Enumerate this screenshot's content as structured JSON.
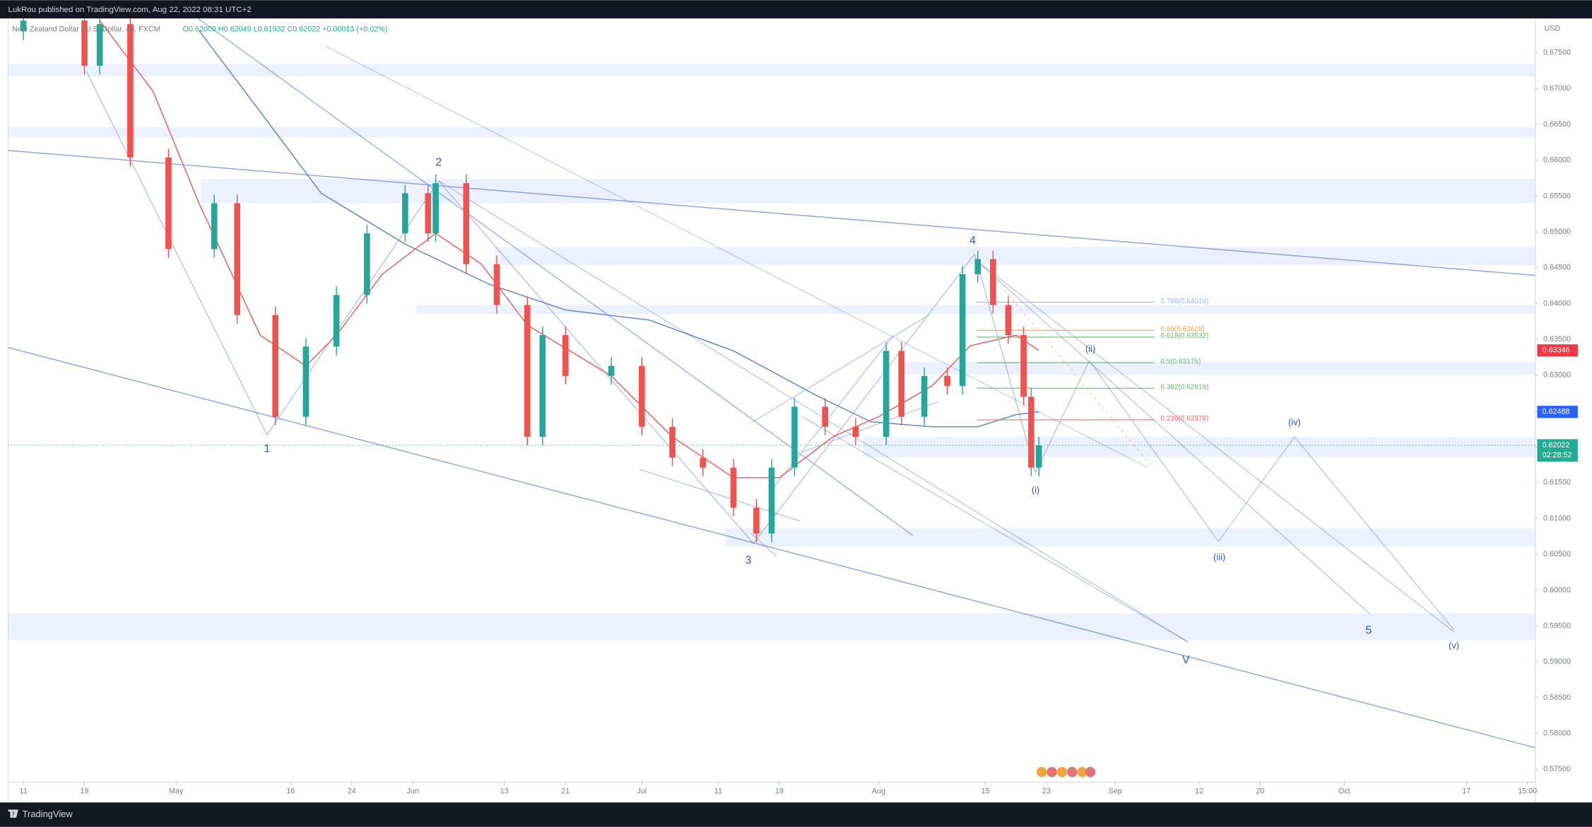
{
  "header": {
    "publisher": "LukRou published on TradingView.com, Aug 22, 2022 08:31 UTC+2",
    "legend": "New Zealand Dollar / U.S. Dollar, 4h, FXCM",
    "ohlc": "O0.62009 H0.62049 L0.61932 C0.62022 +0.00013 (+0.02%)"
  },
  "chart_data": {
    "type": "candlestick",
    "x": [
      "2022-04-11",
      "2022-04-19",
      "2022-04-21",
      "2022-04-25",
      "2022-04-30",
      "2022-05-06",
      "2022-05-09",
      "2022-05-14",
      "2022-05-18",
      "2022-05-22",
      "2022-05-26",
      "2022-05-31",
      "2022-06-03",
      "2022-06-04",
      "2022-06-08",
      "2022-06-12",
      "2022-06-16",
      "2022-06-18",
      "2022-06-21",
      "2022-06-27",
      "2022-07-01",
      "2022-07-05",
      "2022-07-09",
      "2022-07-13",
      "2022-07-16",
      "2022-07-18",
      "2022-07-21",
      "2022-07-25",
      "2022-07-29",
      "2022-08-02",
      "2022-08-04",
      "2022-08-07",
      "2022-08-10",
      "2022-08-12",
      "2022-08-14",
      "2022-08-16",
      "2022-08-18",
      "2022-08-20",
      "2022-08-21",
      "2022-08-22"
    ],
    "open": [
      0.678,
      0.6795,
      0.6732,
      0.679,
      0.6604,
      0.6476,
      0.654,
      0.6384,
      0.6242,
      0.634,
      0.6412,
      0.6498,
      0.6554,
      0.6498,
      0.6568,
      0.6455,
      0.6398,
      0.6214,
      0.6356,
      0.6299,
      0.6313,
      0.6228,
      0.6185,
      0.6171,
      0.6115,
      0.6079,
      0.6171,
      0.6256,
      0.6228,
      0.6214,
      0.6334,
      0.6242,
      0.6299,
      0.6285,
      0.6441,
      0.6462,
      0.6398,
      0.6356,
      0.627,
      0.6171
    ],
    "high": [
      0.6807,
      0.6807,
      0.6802,
      0.6802,
      0.6616,
      0.6552,
      0.6552,
      0.6396,
      0.6352,
      0.6424,
      0.651,
      0.6566,
      0.6566,
      0.658,
      0.658,
      0.6467,
      0.641,
      0.6368,
      0.6368,
      0.6325,
      0.6325,
      0.624,
      0.6197,
      0.6183,
      0.6127,
      0.6183,
      0.6268,
      0.6268,
      0.624,
      0.6346,
      0.6346,
      0.6311,
      0.6311,
      0.6453,
      0.6474,
      0.6474,
      0.641,
      0.6368,
      0.6282,
      0.6214
    ],
    "low": [
      0.6768,
      0.672,
      0.672,
      0.6592,
      0.6464,
      0.6464,
      0.6372,
      0.623,
      0.623,
      0.6328,
      0.64,
      0.6486,
      0.6486,
      0.6486,
      0.6443,
      0.6386,
      0.6202,
      0.6202,
      0.6287,
      0.6287,
      0.6216,
      0.6173,
      0.6159,
      0.6103,
      0.6067,
      0.6067,
      0.6159,
      0.6216,
      0.6202,
      0.6202,
      0.623,
      0.623,
      0.6273,
      0.6273,
      0.6429,
      0.6386,
      0.6344,
      0.6258,
      0.6159,
      0.6159
    ],
    "close": [
      0.6795,
      0.6732,
      0.679,
      0.6604,
      0.6476,
      0.654,
      0.6384,
      0.6242,
      0.634,
      0.6412,
      0.6498,
      0.6554,
      0.6498,
      0.6568,
      0.6455,
      0.6398,
      0.6214,
      0.6356,
      0.6299,
      0.6313,
      0.6228,
      0.6185,
      0.6171,
      0.6115,
      0.6079,
      0.6171,
      0.6256,
      0.6228,
      0.6214,
      0.6334,
      0.6242,
      0.6299,
      0.6285,
      0.6441,
      0.6462,
      0.6398,
      0.6356,
      0.627,
      0.6171,
      0.6202
    ],
    "up_color": "#26a69a",
    "down_color": "#ef5350",
    "moving_averages": [
      {
        "color": "#f05a5a",
        "x": [
          "2022-04-21",
          "2022-04-28",
          "2022-05-04",
          "2022-05-12",
          "2022-05-18",
          "2022-05-22",
          "2022-05-28",
          "2022-06-04",
          "2022-06-10",
          "2022-06-16",
          "2022-06-27",
          "2022-07-05",
          "2022-07-13",
          "2022-07-19",
          "2022-07-26",
          "2022-08-01",
          "2022-08-08",
          "2022-08-13",
          "2022-08-19",
          "2022-08-22"
        ],
        "values": [
          0.6795,
          0.6696,
          0.654,
          0.6356,
          0.6313,
          0.6356,
          0.6441,
          0.6498,
          0.6455,
          0.637,
          0.6299,
          0.6214,
          0.6157,
          0.6157,
          0.6214,
          0.6242,
          0.6285,
          0.6341,
          0.6356,
          0.63346
        ]
      },
      {
        "color": "#5b7fd6",
        "x": [
          "2022-05-04",
          "2022-05-12",
          "2022-05-20",
          "2022-05-31",
          "2022-06-11",
          "2022-06-21",
          "2022-07-02",
          "2022-07-13",
          "2022-07-24",
          "2022-07-31",
          "2022-08-08",
          "2022-08-14",
          "2022-08-19",
          "2022-08-22"
        ],
        "values": [
          0.6781,
          0.6668,
          0.6554,
          0.6483,
          0.6427,
          0.6391,
          0.6377,
          0.6334,
          0.6271,
          0.6235,
          0.6228,
          0.6228,
          0.6245,
          0.62488
        ]
      }
    ],
    "xlim": [
      "2022-04-09",
      "2022-10-26"
    ],
    "xticks": [
      {
        "value": "2022-04-11",
        "label": "11"
      },
      {
        "value": "2022-04-19",
        "label": "19"
      },
      {
        "value": "2022-05-01",
        "label": "May"
      },
      {
        "value": "2022-05-16",
        "label": "16"
      },
      {
        "value": "2022-05-24",
        "label": "24"
      },
      {
        "value": "2022-06-01",
        "label": "Jun"
      },
      {
        "value": "2022-06-13",
        "label": "13"
      },
      {
        "value": "2022-06-21",
        "label": "21"
      },
      {
        "value": "2022-07-01",
        "label": "Jul"
      },
      {
        "value": "2022-07-11",
        "label": "11"
      },
      {
        "value": "2022-07-19",
        "label": "19"
      },
      {
        "value": "2022-08-01",
        "label": "Aug"
      },
      {
        "value": "2022-08-15",
        "label": "15"
      },
      {
        "value": "2022-08-23",
        "label": "23"
      },
      {
        "value": "2022-09-01",
        "label": "Sep"
      },
      {
        "value": "2022-09-12",
        "label": "12"
      },
      {
        "value": "2022-09-20",
        "label": "20"
      },
      {
        "value": "2022-10-01",
        "label": "Oct"
      },
      {
        "value": "2022-10-17",
        "label": "17"
      },
      {
        "value": "2022-10-25",
        "label": "15:00"
      }
    ],
    "ylim": [
      0.5732,
      0.6798
    ],
    "yticks": [
      {
        "value": 0.575,
        "label": "0.57500"
      },
      {
        "value": 0.58,
        "label": "0.58000"
      },
      {
        "value": 0.585,
        "label": "0.58500"
      },
      {
        "value": 0.59,
        "label": "0.59000"
      },
      {
        "value": 0.595,
        "label": "0.59500"
      },
      {
        "value": 0.6,
        "label": "0.60000"
      },
      {
        "value": 0.605,
        "label": "0.60500"
      },
      {
        "value": 0.61,
        "label": "0.61000"
      },
      {
        "value": 0.615,
        "label": "0.61500"
      },
      {
        "value": 0.62,
        "label": "0.62000"
      },
      {
        "value": 0.625,
        "label": "0.62500"
      },
      {
        "value": 0.63,
        "label": "0.63000"
      },
      {
        "value": 0.635,
        "label": "0.63500"
      },
      {
        "value": 0.64,
        "label": "0.64000"
      },
      {
        "value": 0.645,
        "label": "0.64500"
      },
      {
        "value": 0.65,
        "label": "0.65000"
      },
      {
        "value": 0.655,
        "label": "0.65500"
      },
      {
        "value": 0.66,
        "label": "0.66000"
      },
      {
        "value": 0.665,
        "label": "0.66500"
      },
      {
        "value": 0.67,
        "label": "0.67000"
      },
      {
        "value": 0.675,
        "label": "0.67500"
      }
    ],
    "y_unit": "USD",
    "grid": false,
    "fib_levels": [
      {
        "value": 0.64019,
        "label": "0.786(0.64019)",
        "color": "#9dbbe8"
      },
      {
        "value": 0.63628,
        "label": "0.65(0.63628)",
        "color": "#f5a340"
      },
      {
        "value": 0.63532,
        "label": "0.618(0.63532)",
        "color": "#66bb6a"
      },
      {
        "value": 0.63175,
        "label": "0.5(0.63175)",
        "color": "#66bb6a"
      },
      {
        "value": 0.62819,
        "label": "0.382(0.62819)",
        "color": "#66bb6a"
      },
      {
        "value": 0.62378,
        "label": "0.236(0.62378)",
        "color": "#f07070"
      }
    ],
    "price_labels": [
      {
        "value": 0.63346,
        "label": "0.63346",
        "color": "#f23645"
      },
      {
        "value": 0.62488,
        "label": "0.62488",
        "color": "#2962ff"
      },
      {
        "value": 0.62022,
        "label": "0.62022",
        "color": "#22ab94"
      }
    ],
    "countdown": "02:28:52",
    "wave_labels": [
      "1",
      "2",
      "3",
      "4",
      "(i)",
      "(ii)",
      "(iii)",
      "(iv)",
      "(v)",
      "5",
      "V"
    ]
  },
  "footer": {
    "brand": "TradingView"
  }
}
